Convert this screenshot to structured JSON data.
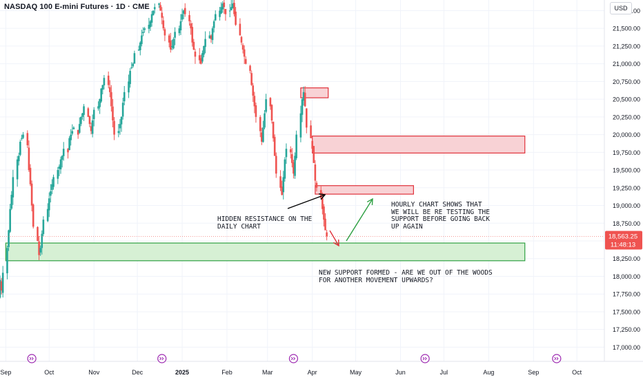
{
  "title": "NASDAQ 100 E-mini Futures · 1D · CME",
  "currency": "USD",
  "colors": {
    "up": "#26a69a",
    "down": "#ef5350",
    "zone_red_fill": "#f8d2d5",
    "zone_red_stroke": "#e0303a",
    "zone_green_fill": "#d6f0d4",
    "zone_green_stroke": "#2ea043",
    "price_label": "#ef5350",
    "arrow_black": "#000000",
    "arrow_red": "#e0303a",
    "arrow_green": "#2ea043",
    "event_icon": "#9c27b0"
  },
  "chart_data": {
    "type": "candlestick",
    "y_ticks": [
      "21,750.00",
      "21,500.00",
      "21,250.00",
      "21,000.00",
      "20,750.00",
      "20,500.00",
      "20,250.00",
      "20,000.00",
      "19,750.00",
      "19,500.00",
      "19,250.00",
      "19,000.00",
      "18,750.00",
      "18,500.00",
      "18,250.00",
      "18,000.00",
      "17,750.00",
      "17,500.00",
      "17,250.00",
      "17,000.00"
    ],
    "x_ticks": [
      "Sep",
      "Oct",
      "Nov",
      "Dec",
      "2025",
      "Feb",
      "Mar",
      "Apr",
      "May",
      "Jun",
      "Jul",
      "Aug",
      "Sep",
      "Oct"
    ],
    "ylim": [
      16800,
      21900
    ],
    "x_range": [
      "2024-08-28",
      "2025-10-20"
    ],
    "last_price": "18,563.25",
    "countdown": "11:48:13",
    "closes": [
      17950,
      17800,
      18050,
      18400,
      18650,
      18950,
      19150,
      19400,
      19650,
      19700,
      19900,
      19950,
      20000,
      19850,
      19500,
      19300,
      19000,
      18700,
      18500,
      18300,
      18400,
      18600,
      18800,
      18950,
      19100,
      19200,
      19300,
      19400,
      19500,
      19550,
      19650,
      19700,
      19800,
      19750,
      19950,
      20000,
      20050,
      20100,
      20000,
      20150,
      20250,
      20300,
      20400,
      20250,
      20150,
      20050,
      20200,
      20350,
      20400,
      20500,
      20650,
      20700,
      20800,
      20700,
      20600,
      20400,
      20200,
      20000,
      20050,
      20150,
      20250,
      20450,
      20600,
      20750,
      20900,
      20950,
      21000,
      21150,
      21200,
      21300,
      21400,
      21450,
      21500,
      21550,
      21600,
      21700,
      21750,
      21800,
      21850,
      21750,
      21650,
      21500,
      21400,
      21300,
      21200,
      21250,
      21350,
      21450,
      21500,
      21600,
      21700,
      21750,
      21700,
      21600,
      21500,
      21300,
      21200,
      21100,
      21050,
      21000,
      21150,
      21250,
      21350,
      21400,
      21350,
      21500,
      21600,
      21700,
      21750,
      21800,
      21850,
      21800,
      21700,
      21750,
      21800,
      21850,
      21700,
      21550,
      21400,
      21300,
      21200,
      21100,
      21000,
      20900,
      20700,
      20550,
      20400,
      20250,
      20050,
      19900,
      20100,
      20300,
      20500,
      20400,
      20200,
      19950,
      19700,
      19450,
      19250,
      19150,
      19400,
      19650,
      19800,
      19750,
      19600,
      19450,
      19700,
      20000,
      20300,
      20500,
      20600,
      20400,
      20100,
      19950,
      19800,
      19600,
      19350,
      19250,
      19100,
      18950,
      18800,
      18650,
      18563.25
    ]
  },
  "zones": [
    {
      "name": "zone-top-small",
      "top": 20660,
      "bottom": 20520,
      "from": "2025-03-24",
      "to": "2025-04-12",
      "kind": "red"
    },
    {
      "name": "zone-resistance-upper",
      "top": 19980,
      "bottom": 19740,
      "from": "2025-04-01",
      "to": "2025-08-26",
      "kind": "red"
    },
    {
      "name": "zone-resistance-lower",
      "top": 19280,
      "bottom": 19160,
      "from": "2025-04-03",
      "to": "2025-06-10",
      "kind": "red"
    },
    {
      "name": "zone-support",
      "top": 18470,
      "bottom": 18220,
      "from": "2024-09-01",
      "to": "2025-08-26",
      "kind": "green"
    }
  ],
  "annotations": {
    "hidden_resistance": "HIDDEN RESISTANCE ON THE\nDAILY CHART",
    "hourly_chart": "HOURLY CHART SHOWS THAT\nWE WILL BE RE TESTING THE\nSUPPORT BEFORE GOING BACK\nUP AGAIN",
    "new_support": "NEW SUPPORT FORMED - ARE WE OUT OF THE WOODS\nFOR ANOTHER MOVEMENT UPWARDS?"
  },
  "event_icons": [
    "2024-09-19",
    "2024-12-18",
    "2025-03-19",
    "2025-06-18",
    "2025-09-17"
  ]
}
